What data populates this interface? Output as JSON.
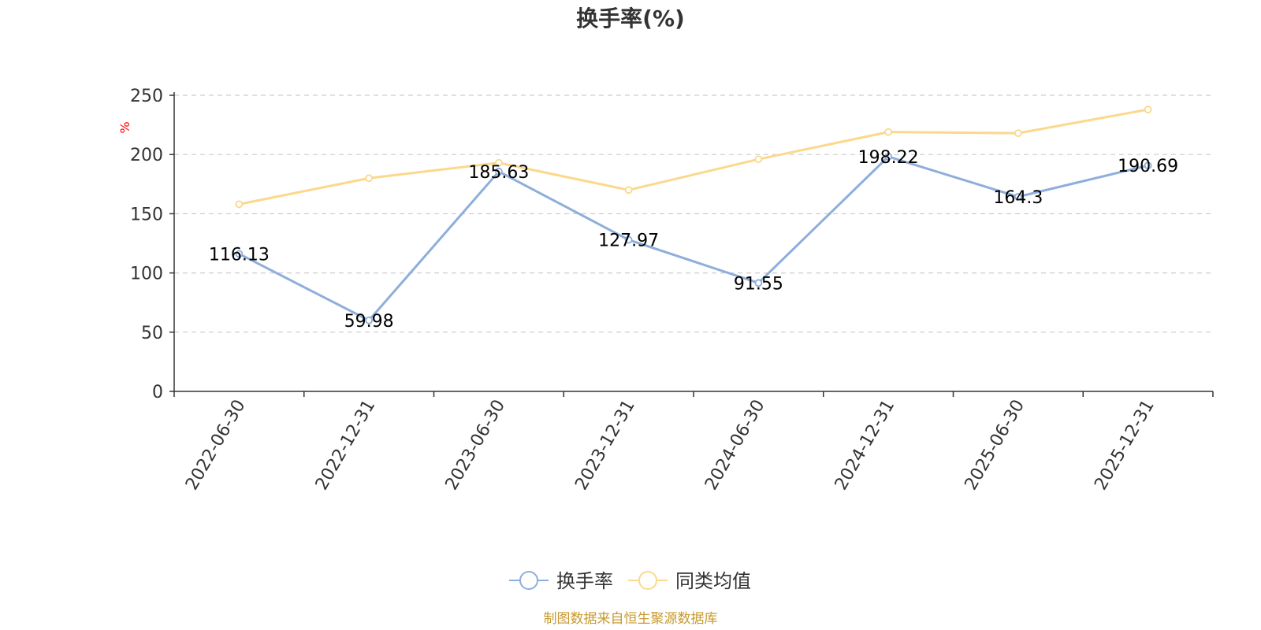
{
  "chart_data": {
    "type": "line",
    "title": "换手率(%)",
    "ylabel": "%",
    "xlabel": "",
    "ylim": [
      0,
      250
    ],
    "yticks": [
      0,
      50,
      100,
      150,
      200,
      250
    ],
    "grid": true,
    "legend_position": "bottom-center",
    "categories": [
      "2022-06-30",
      "2022-12-31",
      "2023-06-30",
      "2023-12-31",
      "2024-06-30",
      "2024-12-31",
      "2025-06-30",
      "2025-12-31"
    ],
    "series": [
      {
        "name": "换手率",
        "color": "#8eaedb",
        "values": [
          116.13,
          59.98,
          185.63,
          127.97,
          91.55,
          198.22,
          164.3,
          190.69
        ],
        "labels": [
          "116.13",
          "59.98",
          "185.63",
          "127.97",
          "91.55",
          "198.22",
          "164.3",
          "190.69"
        ]
      },
      {
        "name": "同类均值",
        "color": "#fbd88c",
        "values": [
          158,
          180,
          193,
          170,
          196,
          219,
          218,
          238
        ]
      }
    ]
  },
  "source": "制图数据来自恒生聚源数据库"
}
